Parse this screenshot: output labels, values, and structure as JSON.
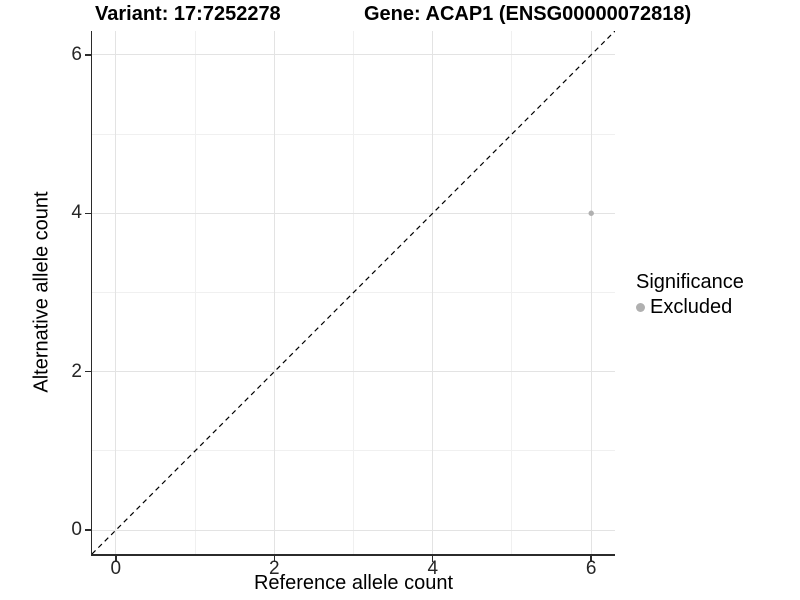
{
  "titles": {
    "variant": "Variant: 17:7252278",
    "gene": "Gene: ACAP1 (ENSG00000072818)"
  },
  "chart_data": {
    "type": "scatter",
    "title_left": "Variant: 17:7252278",
    "title_right": "Gene: ACAP1 (ENSG00000072818)",
    "xlabel": "Reference allele count",
    "ylabel": "Alternative allele count",
    "xlim": [
      -0.3,
      6.3
    ],
    "ylim": [
      -0.3,
      6.3
    ],
    "x_ticks": [
      0,
      2,
      4,
      6
    ],
    "y_ticks": [
      0,
      2,
      4,
      6
    ],
    "x_minor_ticks": [
      1,
      3,
      5
    ],
    "y_minor_ticks": [
      1,
      3,
      5
    ],
    "grid": true,
    "reference_line": {
      "style": "dashed",
      "from": [
        -0.3,
        -0.3
      ],
      "to": [
        6.3,
        6.3
      ],
      "color": "#000000"
    },
    "series": [
      {
        "name": "Excluded",
        "color": "#b0b0b0",
        "x": [
          6
        ],
        "y": [
          4
        ]
      }
    ],
    "legend": {
      "title": "Significance",
      "position": "right",
      "entries": [
        {
          "label": "Excluded",
          "color": "#b0b0b0"
        }
      ]
    }
  },
  "colors": {
    "background": "#ffffff",
    "grid_major": "#e3e3e3",
    "grid_minor": "#f0f0f0",
    "axis": "#2b2b2b",
    "tick_text": "#262626",
    "point": "#b0b0b0",
    "dashed_line": "#000000"
  }
}
